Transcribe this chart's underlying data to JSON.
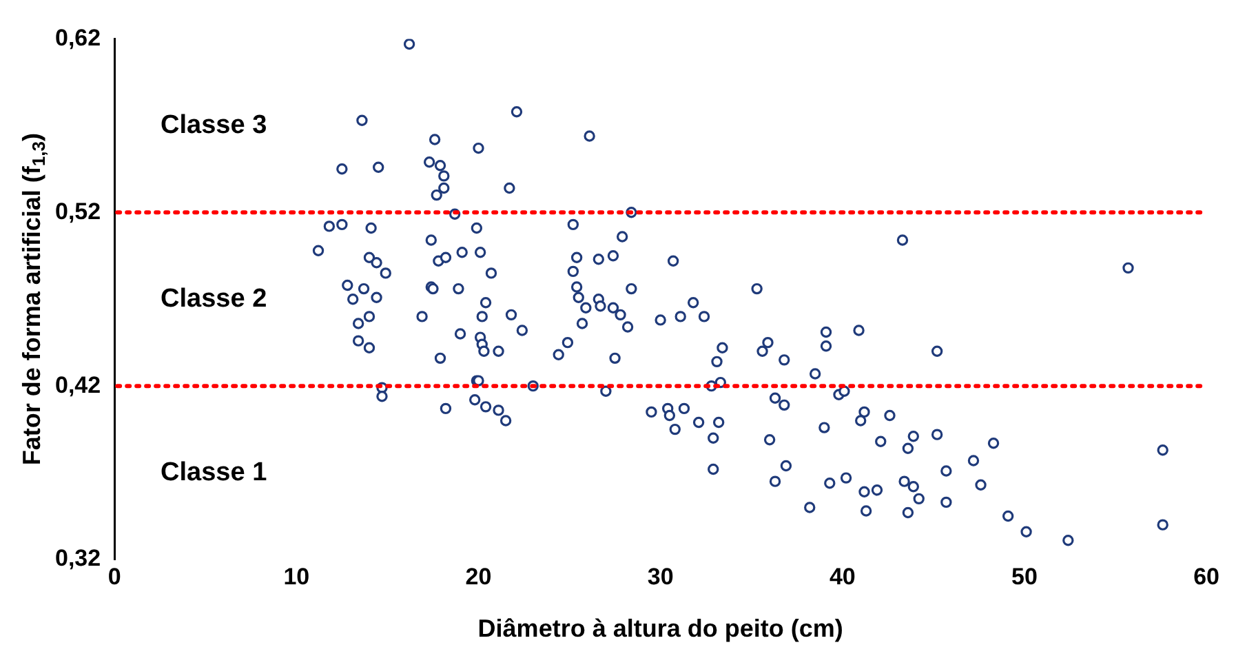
{
  "chart_data": {
    "type": "scatter",
    "xlabel": "Diâmetro à altura do peito (cm)",
    "ylabel": "Fator de forma artificial (f$_{1,3}$)",
    "xlim": [
      0,
      60
    ],
    "xticks": [
      0,
      10,
      20,
      30,
      40,
      50,
      60
    ],
    "ylim": [
      0.32,
      0.62
    ],
    "yticks": [
      {
        "value": 0.32,
        "label": "0,32"
      },
      {
        "value": 0.42,
        "label": "0,42"
      },
      {
        "value": 0.52,
        "label": "0,52"
      },
      {
        "value": 0.62,
        "label": "0,62"
      }
    ],
    "grid": false,
    "legend": false,
    "marker": "circle",
    "ref_lines": [
      {
        "axis": "y",
        "value": 0.42,
        "label": null,
        "color": "#ff0000",
        "line_style": "dotted"
      },
      {
        "axis": "y",
        "value": 0.52,
        "label": null,
        "color": "#ff0000",
        "line_style": "dotted"
      }
    ],
    "annotations": [
      "Classe 3",
      "Classe 2",
      "Classe 1"
    ],
    "series": [
      {
        "color": "#1f3a7a",
        "x": [
          16.2,
          13.6,
          22.1,
          26.1,
          17.6,
          12.5,
          14.5,
          17.3,
          17.9,
          18.1,
          18.1,
          17.7,
          21.7,
          20.0,
          18.7,
          28.4,
          11.8,
          12.5,
          14.1,
          19.9,
          11.2,
          17.4,
          20.1,
          19.1,
          20.7,
          14.0,
          14.4,
          14.9,
          12.8,
          13.7,
          13.1,
          17.4,
          17.8,
          18.2,
          17.5,
          14.4,
          13.4,
          14.0,
          13.4,
          14.0,
          18.9,
          20.4,
          21.8,
          16.9,
          20.2,
          19.0,
          20.1,
          20.2,
          20.3,
          21.1,
          22.4,
          17.9,
          14.7,
          14.7,
          19.9,
          20.0,
          23.0,
          18.2,
          19.8,
          20.4,
          21.1,
          21.5,
          25.2,
          27.9,
          25.4,
          26.6,
          27.4,
          25.2,
          25.4,
          26.6,
          28.4,
          26.7,
          27.4,
          27.8,
          28.2,
          25.5,
          25.9,
          25.7,
          24.9,
          24.4,
          27.5,
          27.0,
          30.7,
          30.0,
          31.1,
          31.8,
          32.4,
          35.3,
          33.4,
          33.1,
          33.3,
          32.8,
          35.9,
          35.6,
          36.8,
          39.1,
          39.1,
          40.9,
          43.3,
          45.2,
          38.5,
          39.8,
          40.1,
          29.5,
          30.4,
          30.5,
          31.3,
          30.8,
          32.1,
          33.2,
          32.9,
          32.9,
          36.3,
          36.8,
          36.0,
          36.9,
          36.3,
          38.2,
          39.0,
          39.3,
          40.2,
          41.2,
          41.0,
          42.6,
          42.1,
          41.2,
          41.9,
          41.3,
          43.6,
          43.9,
          45.2,
          43.4,
          43.9,
          44.2,
          43.6,
          45.7,
          45.7,
          47.2,
          47.6,
          55.7,
          48.3,
          49.1,
          50.1,
          52.4,
          57.6,
          57.6
        ],
        "values": [
          0.617,
          0.573,
          0.578,
          0.564,
          0.562,
          0.545,
          0.546,
          0.549,
          0.547,
          0.541,
          0.534,
          0.53,
          0.534,
          0.557,
          0.519,
          0.52,
          0.512,
          0.513,
          0.511,
          0.511,
          0.498,
          0.504,
          0.497,
          0.497,
          0.485,
          0.494,
          0.491,
          0.485,
          0.478,
          0.476,
          0.47,
          0.477,
          0.492,
          0.494,
          0.476,
          0.471,
          0.456,
          0.46,
          0.446,
          0.442,
          0.476,
          0.468,
          0.461,
          0.46,
          0.46,
          0.45,
          0.448,
          0.444,
          0.44,
          0.44,
          0.452,
          0.436,
          0.419,
          0.414,
          0.423,
          0.423,
          0.42,
          0.407,
          0.412,
          0.408,
          0.406,
          0.4,
          0.513,
          0.506,
          0.494,
          0.493,
          0.495,
          0.486,
          0.477,
          0.47,
          0.476,
          0.466,
          0.465,
          0.461,
          0.454,
          0.471,
          0.465,
          0.456,
          0.445,
          0.438,
          0.436,
          0.417,
          0.492,
          0.458,
          0.46,
          0.468,
          0.46,
          0.476,
          0.442,
          0.434,
          0.422,
          0.42,
          0.445,
          0.44,
          0.435,
          0.451,
          0.443,
          0.452,
          0.504,
          0.44,
          0.427,
          0.415,
          0.417,
          0.405,
          0.407,
          0.403,
          0.407,
          0.395,
          0.399,
          0.399,
          0.39,
          0.372,
          0.413,
          0.409,
          0.389,
          0.374,
          0.365,
          0.35,
          0.396,
          0.364,
          0.367,
          0.405,
          0.4,
          0.403,
          0.388,
          0.359,
          0.36,
          0.348,
          0.384,
          0.391,
          0.392,
          0.365,
          0.362,
          0.355,
          0.347,
          0.371,
          0.353,
          0.377,
          0.363,
          0.488,
          0.387,
          0.345,
          0.336,
          0.331,
          0.383,
          0.34
        ]
      }
    ]
  }
}
